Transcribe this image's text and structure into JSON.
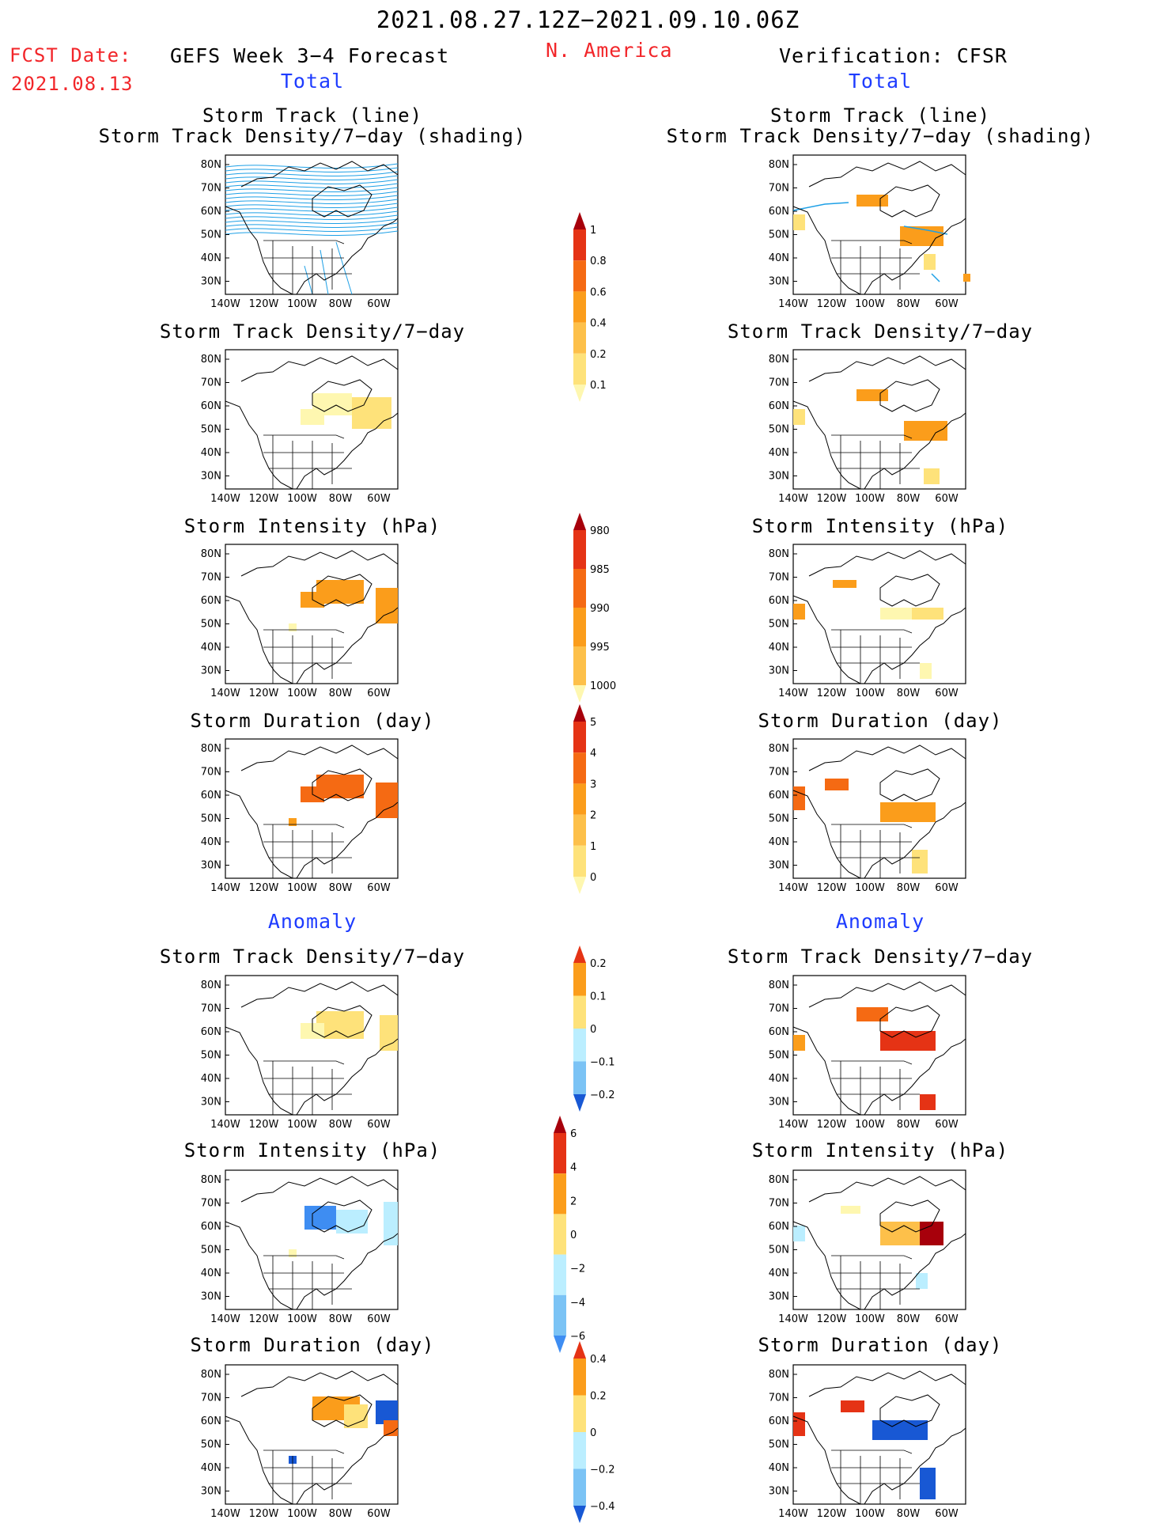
{
  "header": {
    "period": "2021.08.27.12Z−2021.09.10.06Z",
    "fcst_date_label": "FCST Date:",
    "fcst_date": "2021.08.13",
    "product": "GEFS Week 3−4 Forecast",
    "region": "N. America",
    "verification": "Verification: CFSR"
  },
  "sections": {
    "total": "Total",
    "anomaly": "Anomaly"
  },
  "panel_titles": {
    "track_line": "Storm Track (line)",
    "density_shading": "Storm Track Density/7−day (shading)",
    "density": "Storm Track Density/7−day",
    "intensity": "Storm Intensity (hPa)",
    "duration": "Storm Duration (day)"
  },
  "map_axes": {
    "lon_ticks": [
      "140W",
      "120W",
      "100W",
      "80W",
      "60W"
    ],
    "lat_ticks": [
      "80N",
      "70N",
      "60N",
      "50N",
      "40N",
      "30N"
    ]
  },
  "colors": {
    "yellow_light": "#fef7b0",
    "yellow": "#fee27a",
    "gold": "#fdc04a",
    "orange": "#fb9d1b",
    "orange_dark": "#f56a13",
    "red": "#e53315",
    "dark_red": "#a7000b",
    "blue_light": "#bbeeff",
    "blue_mid": "#7bc3f5",
    "blue": "#3e8df2",
    "blue_dark": "#1858d4",
    "track_line": "#1ea0e6"
  },
  "chart_data": [
    {
      "type": "heatmap",
      "name": "Storm Track Density/7-day colorbar",
      "levels": [
        0.1,
        0.2,
        0.4,
        0.6,
        0.8,
        1
      ],
      "tick_labels": [
        "0.1",
        "0.2",
        "0.4",
        "0.6",
        "0.8",
        "1"
      ]
    },
    {
      "type": "heatmap",
      "name": "Storm Intensity (hPa) colorbar",
      "levels": [
        1000,
        995,
        990,
        985,
        980
      ],
      "tick_labels": [
        "1000",
        "995",
        "990",
        "985",
        "980"
      ]
    },
    {
      "type": "heatmap",
      "name": "Storm Duration (day) colorbar",
      "levels": [
        0,
        1,
        2,
        3,
        4,
        5
      ],
      "tick_labels": [
        "0",
        "1",
        "2",
        "3",
        "4",
        "5"
      ]
    },
    {
      "type": "heatmap",
      "name": "Density anomaly colorbar",
      "levels": [
        -0.2,
        -0.1,
        0,
        0.1,
        0.2
      ],
      "tick_labels": [
        "−0.2",
        "−0.1",
        "0",
        "0.1",
        "0.2"
      ]
    },
    {
      "type": "heatmap",
      "name": "Intensity anomaly colorbar",
      "levels": [
        -6,
        -4,
        -2,
        0,
        2,
        4,
        6
      ],
      "tick_labels": [
        "−6",
        "−4",
        "−2",
        "0",
        "2",
        "4",
        "6"
      ]
    },
    {
      "type": "heatmap",
      "name": "Duration anomaly colorbar",
      "levels": [
        -0.4,
        -0.2,
        0,
        0.2,
        0.4
      ],
      "tick_labels": [
        "−0.4",
        "−0.2",
        "0",
        "0.2",
        "0.4"
      ]
    }
  ]
}
